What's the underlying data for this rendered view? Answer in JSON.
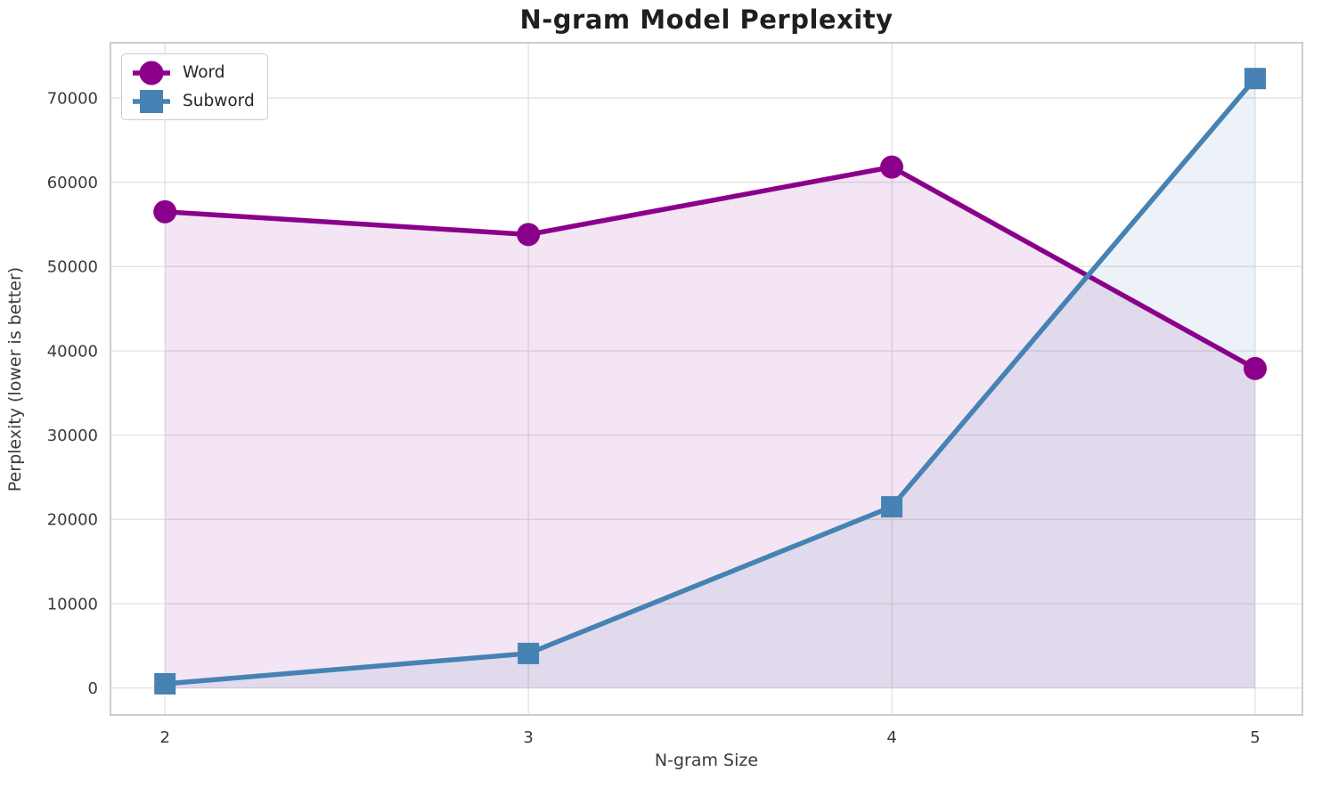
{
  "chart_data": {
    "type": "line",
    "title": "N-gram Model Perplexity",
    "xlabel": "N-gram Size",
    "ylabel": "Perplexity (lower is better)",
    "x": [
      2,
      3,
      4,
      5
    ],
    "series": [
      {
        "name": "Word",
        "values": [
          56500,
          53800,
          61800,
          37900
        ],
        "color": "#8B008B",
        "marker": "circle"
      },
      {
        "name": "Subword",
        "values": [
          500,
          4100,
          21500,
          72300
        ],
        "color": "#4682B4",
        "marker": "square"
      }
    ],
    "x_ticks": [
      2,
      3,
      4,
      5
    ],
    "y_ticks": [
      0,
      10000,
      20000,
      30000,
      40000,
      50000,
      60000,
      70000
    ],
    "xlim": [
      1.85,
      5.13
    ],
    "ylim": [
      -3200,
      76550
    ],
    "grid": true,
    "area_fill_to_zero": true,
    "fill_alpha": 0.1,
    "legend_position": "upper-left"
  },
  "colors": {
    "word": "#8B008B",
    "subword": "#4682B4",
    "grid": "#e3e3e3",
    "spine": "#c8c8c8",
    "tick_text": "#3a3a3a",
    "title_text": "#1f1f1f",
    "background": "#ffffff",
    "legend_border": "#cccccc"
  }
}
